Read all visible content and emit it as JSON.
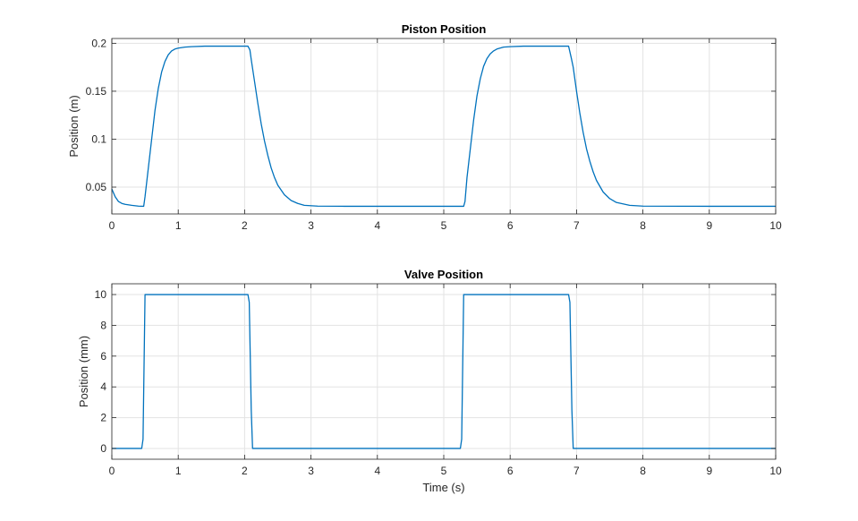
{
  "chart_data": [
    {
      "type": "line",
      "title": "Piston Position",
      "xlabel": "",
      "ylabel": "Position (m)",
      "xlim": [
        0,
        10
      ],
      "ylim": [
        0.022,
        0.205
      ],
      "xticks": [
        0,
        1,
        2,
        3,
        4,
        5,
        6,
        7,
        8,
        9,
        10
      ],
      "yticks": [
        0.05,
        0.1,
        0.15,
        0.2
      ],
      "ytick_labels": [
        "0.05",
        "0.1",
        "0.15",
        "0.2"
      ],
      "grid": true,
      "color": "#0072BD",
      "series": [
        {
          "x": [
            0,
            0.05,
            0.1,
            0.15,
            0.2,
            0.3,
            0.4,
            0.48,
            0.5,
            0.55,
            0.6,
            0.65,
            0.7,
            0.75,
            0.8,
            0.85,
            0.9,
            0.95,
            1.0,
            1.1,
            1.2,
            1.4,
            1.7,
            2.05,
            2.08,
            2.1,
            2.15,
            2.2,
            2.25,
            2.3,
            2.35,
            2.4,
            2.45,
            2.5,
            2.6,
            2.7,
            2.8,
            2.9,
            3.1,
            3.5,
            4.0,
            4.5,
            5.0,
            5.3,
            5.32,
            5.35,
            5.4,
            5.45,
            5.5,
            5.55,
            5.6,
            5.65,
            5.7,
            5.75,
            5.8,
            5.9,
            6.0,
            6.2,
            6.5,
            6.88,
            6.92,
            6.95,
            7.0,
            7.05,
            7.1,
            7.15,
            7.2,
            7.25,
            7.3,
            7.4,
            7.5,
            7.6,
            7.8,
            8.0,
            9.0,
            10.0
          ],
          "y": [
            0.048,
            0.04,
            0.035,
            0.033,
            0.032,
            0.031,
            0.0302,
            0.03,
            0.04,
            0.07,
            0.1,
            0.13,
            0.153,
            0.17,
            0.181,
            0.188,
            0.192,
            0.194,
            0.195,
            0.196,
            0.1965,
            0.197,
            0.197,
            0.197,
            0.193,
            0.183,
            0.16,
            0.137,
            0.116,
            0.098,
            0.083,
            0.07,
            0.06,
            0.052,
            0.042,
            0.036,
            0.033,
            0.031,
            0.0302,
            0.03,
            0.03,
            0.03,
            0.03,
            0.03,
            0.035,
            0.06,
            0.09,
            0.12,
            0.145,
            0.163,
            0.176,
            0.184,
            0.189,
            0.192,
            0.194,
            0.196,
            0.1965,
            0.197,
            0.197,
            0.197,
            0.185,
            0.175,
            0.15,
            0.127,
            0.107,
            0.09,
            0.077,
            0.066,
            0.057,
            0.045,
            0.038,
            0.034,
            0.031,
            0.0302,
            0.03,
            0.03
          ]
        }
      ]
    },
    {
      "type": "line",
      "title": "Valve Position",
      "xlabel": "Time (s)",
      "ylabel": "Position (mm)",
      "xlim": [
        0,
        10
      ],
      "ylim": [
        -0.7,
        10.7
      ],
      "xticks": [
        0,
        1,
        2,
        3,
        4,
        5,
        6,
        7,
        8,
        9,
        10
      ],
      "yticks": [
        0,
        2,
        4,
        6,
        8,
        10
      ],
      "ytick_labels": [
        "0",
        "2",
        "4",
        "6",
        "8",
        "10"
      ],
      "grid": true,
      "color": "#0072BD",
      "series": [
        {
          "x": [
            0,
            0.45,
            0.47,
            0.5,
            2.05,
            2.07,
            2.1,
            2.12,
            5.25,
            5.27,
            5.3,
            6.88,
            6.9,
            6.93,
            6.95,
            10.0
          ],
          "y": [
            0,
            0,
            0.6,
            10,
            10,
            9.5,
            2.5,
            0,
            0,
            0.6,
            10,
            10,
            9.5,
            2.5,
            0,
            0
          ]
        }
      ]
    }
  ]
}
